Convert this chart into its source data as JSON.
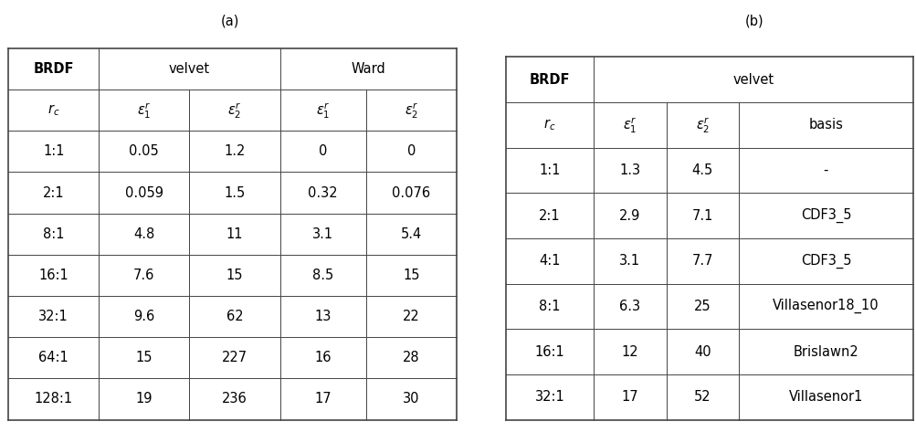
{
  "title_a": "(a)",
  "title_b": "(b)",
  "table_a": {
    "rows": [
      [
        "1:1",
        "0.05",
        "1.2",
        "0",
        "0"
      ],
      [
        "2:1",
        "0.059",
        "1.5",
        "0.32",
        "0.076"
      ],
      [
        "8:1",
        "4.8",
        "11",
        "3.1",
        "5.4"
      ],
      [
        "16:1",
        "7.6",
        "15",
        "8.5",
        "15"
      ],
      [
        "32:1",
        "9.6",
        "62",
        "13",
        "22"
      ],
      [
        "64:1",
        "15",
        "227",
        "16",
        "28"
      ],
      [
        "128:1",
        "19",
        "236",
        "17",
        "30"
      ]
    ]
  },
  "table_b": {
    "rows": [
      [
        "1:1",
        "1.3",
        "4.5",
        "-"
      ],
      [
        "2:1",
        "2.9",
        "7.1",
        "CDF3_5"
      ],
      [
        "4:1",
        "3.1",
        "7.7",
        "CDF3_5"
      ],
      [
        "8:1",
        "6.3",
        "25",
        "Villasenor18_10"
      ],
      [
        "16:1",
        "12",
        "40",
        "Brislawn2"
      ],
      [
        "32:1",
        "17",
        "52",
        "Villasenor1"
      ]
    ]
  },
  "background_color": "#ffffff",
  "line_color": "#444444",
  "text_color": "#000000",
  "font_size": 10.5
}
